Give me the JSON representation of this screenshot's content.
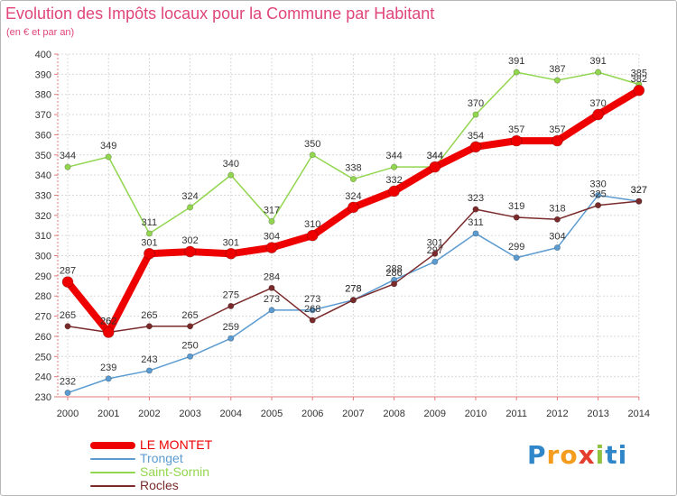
{
  "title": "Evolution des Impôts locaux pour la Commune par Habitant",
  "subtitle": "(en € et par an)",
  "brand": [
    "P",
    "r",
    "o",
    "x",
    "i",
    "t",
    "i"
  ],
  "brand_colors": [
    "#2f86c8",
    "#f39c1e",
    "#f39c1e",
    "#e43d2f",
    "#8fc23f",
    "#2f86c8",
    "#2f86c8"
  ],
  "chart_data": {
    "type": "line",
    "title": "Evolution des Impôts locaux pour la Commune par Habitant",
    "subtitle": "(en € et par an)",
    "xlabel": "",
    "ylabel": "",
    "categories": [
      "2000",
      "2001",
      "2002",
      "2003",
      "2004",
      "2005",
      "2006",
      "2007",
      "2008",
      "2009",
      "2010",
      "2011",
      "2012",
      "2013",
      "2014"
    ],
    "ylim": [
      230,
      400
    ],
    "yticks": [
      230,
      240,
      250,
      260,
      270,
      280,
      290,
      300,
      310,
      320,
      330,
      340,
      350,
      360,
      370,
      380,
      390,
      400
    ],
    "grid": true,
    "legend_position": "bottom-left",
    "series": [
      {
        "name": "Saint-Sornin",
        "color": "#92d64f",
        "values": [
          344,
          349,
          311,
          324,
          340,
          317,
          350,
          338,
          344,
          344,
          370,
          391,
          387,
          391,
          385
        ]
      },
      {
        "name": "Tronget",
        "color": "#5b9bd0",
        "values": [
          232,
          239,
          243,
          250,
          259,
          273,
          273,
          278,
          288,
          297,
          311,
          299,
          304,
          330,
          327
        ]
      },
      {
        "name": "Rocles",
        "color": "#7a2a2a",
        "values": [
          265,
          262,
          265,
          265,
          275,
          284,
          268,
          278,
          286,
          301,
          323,
          319,
          318,
          325,
          327
        ]
      },
      {
        "name": "LE MONTET",
        "color": "#ee0000",
        "values": [
          287,
          262,
          301,
          302,
          301,
          304,
          310,
          324,
          332,
          344,
          354,
          357,
          357,
          370,
          382
        ]
      }
    ],
    "legend_order": [
      "LE MONTET",
      "Tronget",
      "Saint-Sornin",
      "Rocles"
    ]
  }
}
